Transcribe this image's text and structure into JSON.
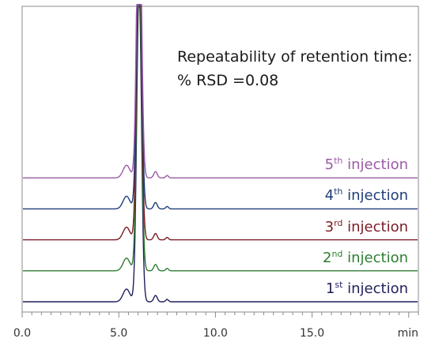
{
  "annotation": {
    "line1": "Repeatability of retention time:",
    "line2": "% RSD =0.08"
  },
  "chart_data": {
    "type": "line",
    "title": "",
    "xlabel": "min",
    "ylabel": "",
    "xlim": [
      0,
      20.5
    ],
    "x_ticks": [
      "0.0",
      "5.0",
      "10.0",
      "15.0"
    ],
    "x_tick_values": [
      0,
      5,
      10,
      15
    ],
    "grid": false,
    "legend": "none",
    "series": [
      {
        "name": "1st injection",
        "label_base": "1",
        "label_sup": "st",
        "label_rest": " injection",
        "color": "#1f1f5c",
        "baseline": 0,
        "peaks": [
          {
            "rt": 5.4,
            "h": 16
          },
          {
            "rt": 6.05,
            "h": 400
          },
          {
            "rt": 6.9,
            "h": 8
          },
          {
            "rt": 7.5,
            "h": 3
          }
        ]
      },
      {
        "name": "2nd injection",
        "label_base": "2",
        "label_sup": "nd",
        "label_rest": " injection",
        "color": "#2e7d32",
        "baseline": 1,
        "peaks": [
          {
            "rt": 5.4,
            "h": 16
          },
          {
            "rt": 6.05,
            "h": 400
          },
          {
            "rt": 6.9,
            "h": 8
          },
          {
            "rt": 7.5,
            "h": 3
          }
        ]
      },
      {
        "name": "3rd injection",
        "label_base": "3",
        "label_sup": "rd",
        "label_rest": " injection",
        "color": "#7a1c24",
        "baseline": 2,
        "peaks": [
          {
            "rt": 5.4,
            "h": 16
          },
          {
            "rt": 6.05,
            "h": 400
          },
          {
            "rt": 6.9,
            "h": 8
          },
          {
            "rt": 7.5,
            "h": 3
          }
        ]
      },
      {
        "name": "4th injection",
        "label_base": "4",
        "label_sup": "th",
        "label_rest": " injection",
        "color": "#1f3d7a",
        "baseline": 3,
        "peaks": [
          {
            "rt": 5.4,
            "h": 16
          },
          {
            "rt": 6.05,
            "h": 400
          },
          {
            "rt": 6.9,
            "h": 8
          },
          {
            "rt": 7.5,
            "h": 3
          }
        ]
      },
      {
        "name": "5th injection",
        "label_base": "5",
        "label_sup": "th",
        "label_rest": " injection",
        "color": "#9b5aa6",
        "baseline": 4,
        "peaks": [
          {
            "rt": 5.4,
            "h": 16
          },
          {
            "rt": 6.05,
            "h": 400
          },
          {
            "rt": 6.9,
            "h": 8
          },
          {
            "rt": 7.5,
            "h": 3
          }
        ]
      }
    ]
  }
}
